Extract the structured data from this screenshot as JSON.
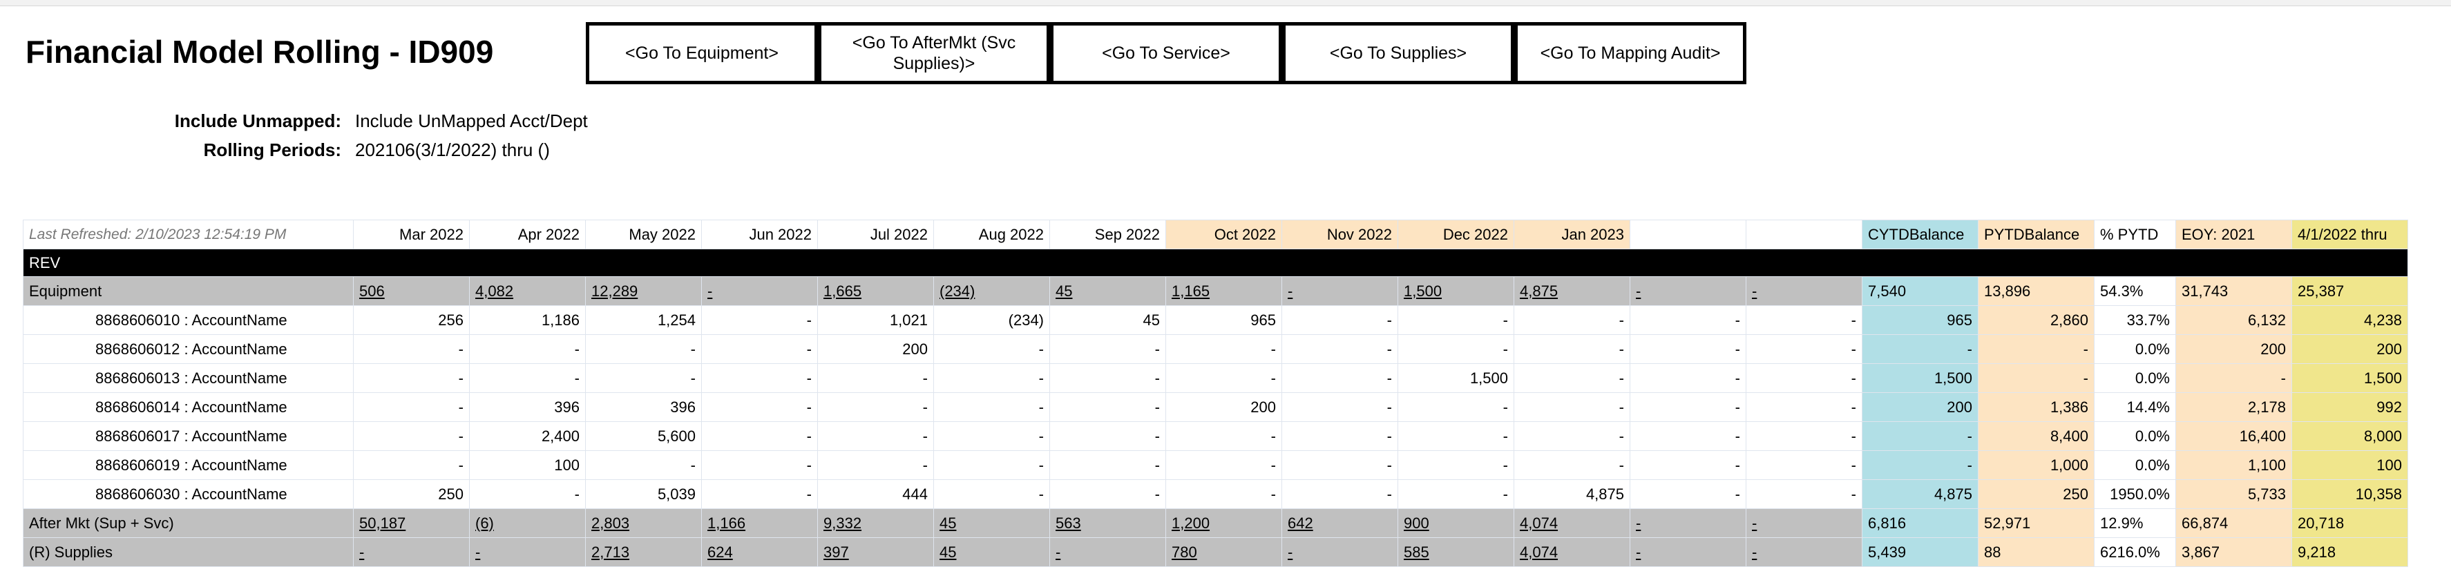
{
  "page": {
    "title": "Financial Model Rolling - ID909",
    "nav_buttons": [
      "<Go To Equipment>",
      "<Go To AfterMkt (Svc Supplies)>",
      "<Go To Service>",
      "<Go To Supplies>",
      "<Go To Mapping Audit>"
    ],
    "include_unmapped_label": "Include Unmapped:",
    "include_unmapped_value": "Include UnMapped Acct/Dept",
    "rolling_periods_label": "Rolling Periods:",
    "rolling_periods_value": "202106(3/1/2022) thru ()"
  },
  "table": {
    "last_refreshed": "Last Refreshed: 2/10/2023 12:54:19 PM",
    "months": [
      "Mar 2022",
      "Apr 2022",
      "May 2022",
      "Jun 2022",
      "Jul 2022",
      "Aug 2022",
      "Sep 2022",
      "Oct 2022",
      "Nov 2022",
      "Dec 2022",
      "Jan 2023",
      "",
      ""
    ],
    "summary_headers": [
      "CYTDBalance",
      "PYTDBalance",
      "% PYTD",
      "EOY: 2021",
      "4/1/2022 thru"
    ],
    "section_label": "REV",
    "colors": {
      "forecast_header": "#fde4c2",
      "cytd": "#b1dfe6",
      "pytd": "#fde4c2",
      "eoy": "#fde4c2",
      "rolling": "#f0e68c",
      "group_row": "#c0c0c0",
      "section_bar": "#000000"
    },
    "rows": [
      {
        "type": "group",
        "label": "Equipment",
        "months": [
          "506",
          "4,082",
          "12,289",
          "-",
          "1,665",
          "(234)",
          "45",
          "1,165",
          "-",
          "1,500",
          "4,875",
          "-",
          "-"
        ],
        "summary": [
          "7,540",
          "13,896",
          "54.3%",
          "31,743",
          "25,387"
        ]
      },
      {
        "type": "detail",
        "label": "8868606010 : AccountName",
        "months": [
          "256",
          "1,186",
          "1,254",
          "-",
          "1,021",
          "(234)",
          "45",
          "965",
          "-",
          "-",
          "-",
          "-",
          "-"
        ],
        "summary": [
          "965",
          "2,860",
          "33.7%",
          "6,132",
          "4,238"
        ]
      },
      {
        "type": "detail",
        "label": "8868606012 : AccountName",
        "months": [
          "-",
          "-",
          "-",
          "-",
          "200",
          "-",
          "-",
          "-",
          "-",
          "-",
          "-",
          "-",
          "-"
        ],
        "summary": [
          "-",
          "-",
          "0.0%",
          "200",
          "200"
        ]
      },
      {
        "type": "detail",
        "label": "8868606013 : AccountName",
        "months": [
          "-",
          "-",
          "-",
          "-",
          "-",
          "-",
          "-",
          "-",
          "-",
          "1,500",
          "-",
          "-",
          "-"
        ],
        "summary": [
          "1,500",
          "-",
          "0.0%",
          "-",
          "1,500"
        ]
      },
      {
        "type": "detail",
        "label": "8868606014 : AccountName",
        "months": [
          "-",
          "396",
          "396",
          "-",
          "-",
          "-",
          "-",
          "200",
          "-",
          "-",
          "-",
          "-",
          "-"
        ],
        "summary": [
          "200",
          "1,386",
          "14.4%",
          "2,178",
          "992"
        ]
      },
      {
        "type": "detail",
        "label": "8868606017 : AccountName",
        "months": [
          "-",
          "2,400",
          "5,600",
          "-",
          "-",
          "-",
          "-",
          "-",
          "-",
          "-",
          "-",
          "-",
          "-"
        ],
        "summary": [
          "-",
          "8,400",
          "0.0%",
          "16,400",
          "8,000"
        ]
      },
      {
        "type": "detail",
        "label": "8868606019 : AccountName",
        "months": [
          "-",
          "100",
          "-",
          "-",
          "-",
          "-",
          "-",
          "-",
          "-",
          "-",
          "-",
          "-",
          "-"
        ],
        "summary": [
          "-",
          "1,000",
          "0.0%",
          "1,100",
          "100"
        ]
      },
      {
        "type": "detail",
        "label": "8868606030 : AccountName",
        "months": [
          "250",
          "-",
          "5,039",
          "-",
          "444",
          "-",
          "-",
          "-",
          "-",
          "-",
          "4,875",
          "-",
          "-"
        ],
        "summary": [
          "4,875",
          "250",
          "1950.0%",
          "5,733",
          "10,358"
        ]
      },
      {
        "type": "group",
        "label": "After Mkt (Sup + Svc)",
        "months": [
          "50,187",
          "(6)",
          "2,803",
          "1,166",
          "9,332",
          "45",
          "563",
          "1,200",
          "642",
          "900",
          "4,074",
          "-",
          "-"
        ],
        "summary": [
          "6,816",
          "52,971",
          "12.9%",
          "66,874",
          "20,718"
        ]
      },
      {
        "type": "group",
        "label": "(R) Supplies",
        "months": [
          "-",
          "-",
          "2,713",
          "624",
          "397",
          "45",
          "-",
          "780",
          "-",
          "585",
          "4,074",
          "-",
          "-"
        ],
        "summary": [
          "5,439",
          "88",
          "6216.0%",
          "3,867",
          "9,218"
        ]
      }
    ]
  }
}
